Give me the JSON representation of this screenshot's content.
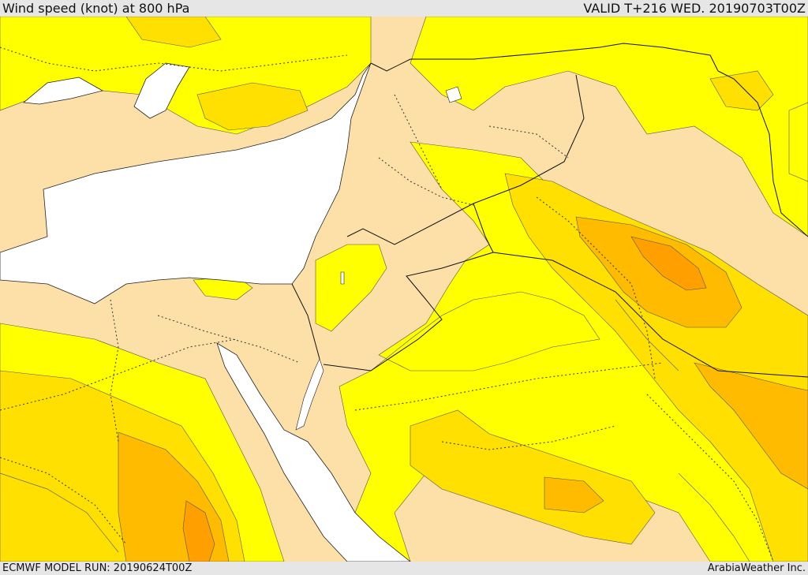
{
  "header": {
    "title": "Wind speed (knot) at 800 hPa",
    "valid": "VALID T+216 WED. 20190703T00Z"
  },
  "footer": {
    "model_run": "ECMWF MODEL RUN: 20190624T00Z",
    "credit": "ArabiaWeather Inc."
  },
  "colors": {
    "land_calm": "#fde0a8",
    "band_1": "#ffff00",
    "band_2": "#ffe000",
    "band_3": "#ffbb00",
    "band_4": "#ff9f00",
    "water": "#ffffff",
    "background": "#e6e6e6"
  }
}
